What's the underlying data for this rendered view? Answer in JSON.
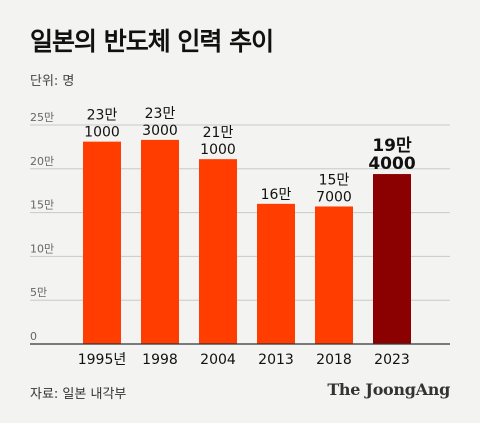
{
  "title": "일본의 반도체 인력 추이",
  "unit": "단위: 명",
  "source": "자료: 일본 내각부",
  "brand": "The JoongAng",
  "colors": {
    "bar": "#ff3d00",
    "highlight": "#8b0000",
    "grid": "#c9c9c9",
    "axis": "#333333"
  },
  "chart_data": {
    "type": "bar",
    "categories": [
      "1995년",
      "1998",
      "2004",
      "2013",
      "2018",
      "2023"
    ],
    "values": [
      231000,
      233000,
      211000,
      160000,
      157000,
      194000
    ],
    "data_labels": [
      [
        "23만",
        "1000"
      ],
      [
        "23만",
        "3000"
      ],
      [
        "21만",
        "1000"
      ],
      [
        "16만",
        ""
      ],
      [
        "15만",
        "7000"
      ],
      [
        "19만",
        "4000"
      ]
    ],
    "highlight_index": 5,
    "y_ticks": [
      {
        "value": 0,
        "label": "0"
      },
      {
        "value": 50000,
        "label": "5만"
      },
      {
        "value": 100000,
        "label": "10만"
      },
      {
        "value": 150000,
        "label": "15만"
      },
      {
        "value": 200000,
        "label": "20만"
      },
      {
        "value": 250000,
        "label": "25만"
      }
    ],
    "ylim": [
      0,
      250000
    ],
    "grid": true
  }
}
